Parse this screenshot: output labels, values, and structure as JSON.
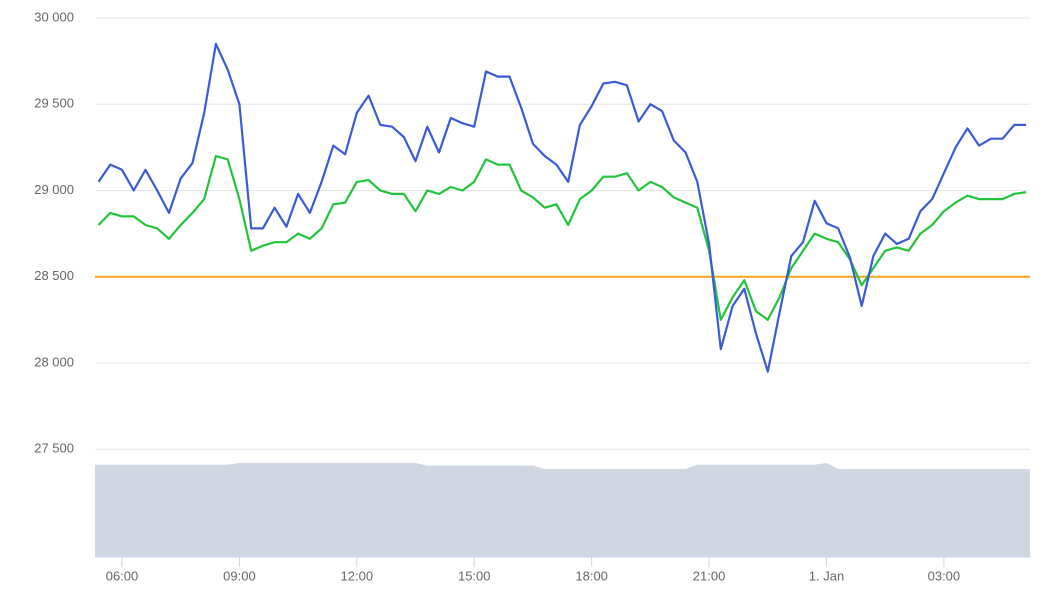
{
  "chart_data": {
    "type": "line",
    "x": [
      5.4,
      5.7,
      6.0,
      6.3,
      6.6,
      6.9,
      7.2,
      7.5,
      7.8,
      8.1,
      8.4,
      8.7,
      9.0,
      9.3,
      9.6,
      9.9,
      10.2,
      10.5,
      10.8,
      11.1,
      11.4,
      11.7,
      12.0,
      12.3,
      12.6,
      12.9,
      13.2,
      13.5,
      13.8,
      14.1,
      14.4,
      14.7,
      15.0,
      15.3,
      15.6,
      15.9,
      16.2,
      16.5,
      16.8,
      17.1,
      17.4,
      17.7,
      18.0,
      18.3,
      18.6,
      18.9,
      19.2,
      19.5,
      19.8,
      20.1,
      20.4,
      20.7,
      21.0,
      21.3,
      21.6,
      21.9,
      22.2,
      22.5,
      22.8,
      23.1,
      23.4,
      23.7,
      24.0,
      24.3,
      24.6,
      24.9,
      25.2,
      25.5,
      25.8,
      26.1,
      26.4,
      26.7,
      27.0,
      27.3,
      27.6,
      27.9,
      28.2,
      28.5,
      28.8,
      29.1
    ],
    "series": [
      {
        "type": "area",
        "color": "#d0d6e2",
        "values": [
          27410,
          27410,
          27410,
          27410,
          27410,
          27410,
          27410,
          27410,
          27410,
          27410,
          27410,
          27410,
          27420,
          27420,
          27420,
          27420,
          27420,
          27420,
          27420,
          27420,
          27420,
          27420,
          27420,
          27420,
          27420,
          27420,
          27420,
          27420,
          27405,
          27405,
          27405,
          27405,
          27405,
          27405,
          27405,
          27405,
          27405,
          27405,
          27385,
          27385,
          27385,
          27385,
          27385,
          27385,
          27385,
          27385,
          27385,
          27385,
          27385,
          27385,
          27385,
          27410,
          27410,
          27410,
          27410,
          27410,
          27410,
          27410,
          27410,
          27410,
          27410,
          27410,
          27420,
          27385,
          27385,
          27385,
          27385,
          27385,
          27385,
          27385,
          27385,
          27385,
          27385,
          27385,
          27385,
          27385,
          27385,
          27385,
          27385,
          27385
        ]
      },
      {
        "type": "line",
        "color": "#22c43a",
        "values": [
          28800,
          28870,
          28850,
          28850,
          28800,
          28780,
          28720,
          28800,
          28870,
          28950,
          29200,
          29180,
          28950,
          28650,
          28680,
          28700,
          28700,
          28750,
          28720,
          28780,
          28920,
          28930,
          29050,
          29060,
          29000,
          28980,
          28980,
          28880,
          29000,
          28980,
          29020,
          29000,
          29050,
          29180,
          29150,
          29150,
          29000,
          28960,
          28900,
          28920,
          28800,
          28950,
          29000,
          29080,
          29080,
          29100,
          29000,
          29050,
          29020,
          28960,
          28930,
          28900,
          28650,
          28250,
          28380,
          28480,
          28300,
          28250,
          28380,
          28550,
          28650,
          28750,
          28720,
          28700,
          28600,
          28450,
          28550,
          28650,
          28670,
          28650,
          28750,
          28800,
          28880,
          28930,
          28970,
          28950,
          28950,
          28950,
          28980,
          28990
        ]
      },
      {
        "type": "line",
        "color": "#3b5bd6",
        "values": [
          29050,
          29150,
          29120,
          29000,
          29120,
          29000,
          28870,
          29070,
          29160,
          29450,
          29850,
          29700,
          29500,
          28780,
          28780,
          28900,
          28790,
          28980,
          28870,
          29050,
          29260,
          29210,
          29450,
          29550,
          29380,
          29370,
          29310,
          29170,
          29370,
          29220,
          29420,
          29390,
          29370,
          29690,
          29660,
          29660,
          29480,
          29270,
          29200,
          29150,
          29050,
          29380,
          29490,
          29620,
          29630,
          29610,
          29400,
          29500,
          29460,
          29290,
          29220,
          29050,
          28690,
          28080,
          28330,
          28430,
          28170,
          27950,
          28290,
          28620,
          28700,
          28940,
          28810,
          28780,
          28610,
          28330,
          28620,
          28750,
          28690,
          28720,
          28880,
          28950,
          29100,
          29250,
          29360,
          29260,
          29300,
          29300,
          29380,
          29380
        ]
      }
    ],
    "hline": {
      "value": 28500,
      "color": "#f7a21b"
    },
    "xlim": [
      5.31,
      29.2
    ],
    "xticks": [
      {
        "value": 6,
        "label": "06:00"
      },
      {
        "value": 9,
        "label": "09:00"
      },
      {
        "value": 12,
        "label": "12:00"
      },
      {
        "value": 15,
        "label": "15:00"
      },
      {
        "value": 18,
        "label": "18:00"
      },
      {
        "value": 21,
        "label": "21:00"
      },
      {
        "value": 24,
        "label": "1. Jan"
      },
      {
        "value": 27,
        "label": "03:00"
      }
    ],
    "ylim": [
      26875,
      30000
    ],
    "yticks": [
      {
        "value": 27500,
        "label": "27 500"
      },
      {
        "value": 28000,
        "label": "28 000"
      },
      {
        "value": 28500,
        "label": "28 500"
      },
      {
        "value": 29000,
        "label": "29 000"
      },
      {
        "value": 29500,
        "label": "29 500"
      },
      {
        "value": 30000,
        "label": "30 000"
      }
    ],
    "grid": true
  }
}
